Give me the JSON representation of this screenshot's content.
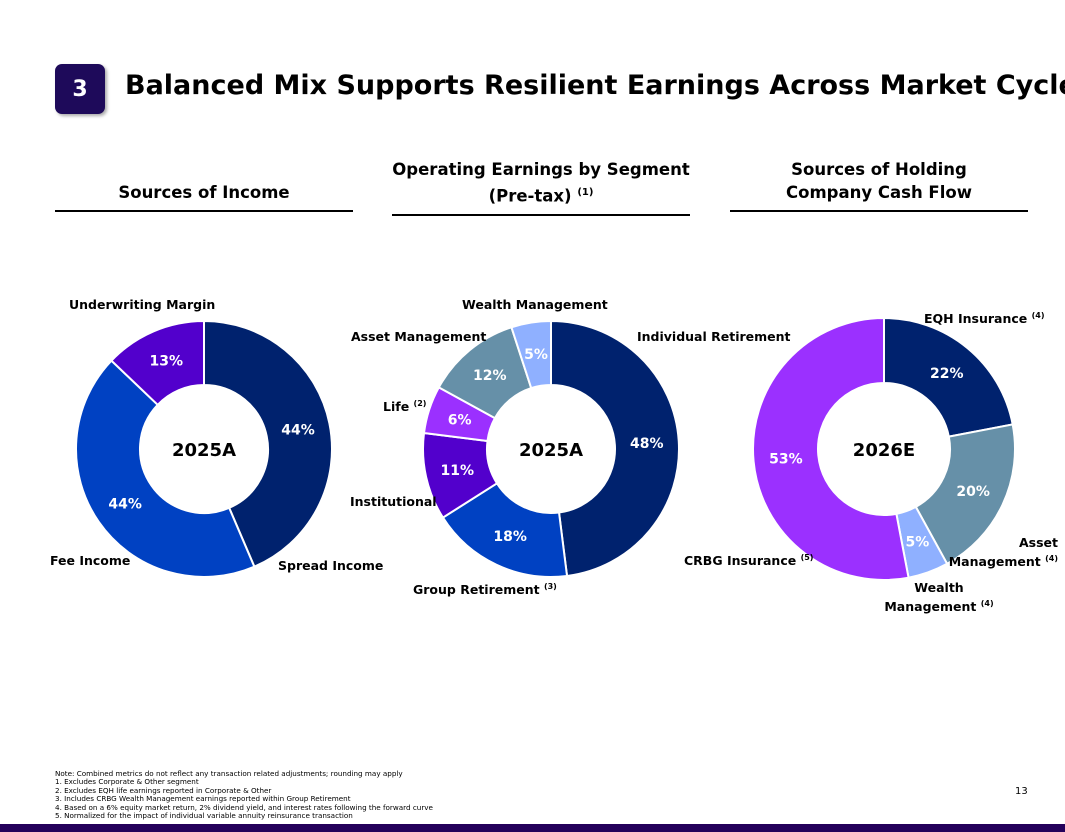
{
  "header": {
    "number": "3",
    "title": "Balanced Mix Supports Resilient Earnings Across Market Cycles"
  },
  "sections": [
    {
      "title": "Sources of Income"
    },
    {
      "title_line1": "Operating Earnings by Segment",
      "title_line2": "(Pre-tax)",
      "note": "(1)"
    },
    {
      "title_line1": "Sources of Holding",
      "title_line2": "Company Cash Flow"
    }
  ],
  "chart_data": [
    {
      "type": "pie",
      "donut": true,
      "center_label": "2025A",
      "title": "Sources of Income",
      "slices": [
        {
          "label": "Spread Income",
          "value": 44,
          "color": "#00226e"
        },
        {
          "label": "Fee Income",
          "value": 44,
          "color": "#0041c2"
        },
        {
          "label": "Underwriting Margin",
          "value": 13,
          "color": "#5200cc"
        }
      ]
    },
    {
      "type": "pie",
      "donut": true,
      "center_label": "2025A",
      "title": "Operating Earnings by Segment (Pre-tax)",
      "slices": [
        {
          "label": "Individual Retirement",
          "value": 48,
          "color": "#00226e"
        },
        {
          "label": "Group Retirement",
          "note": "(3)",
          "value": 18,
          "color": "#0041c2"
        },
        {
          "label": "Institutional",
          "value": 11,
          "color": "#5200cc"
        },
        {
          "label": "Life",
          "note": "(2)",
          "value": 6,
          "color": "#9b30ff"
        },
        {
          "label": "Asset Management",
          "value": 12,
          "color": "#6690a8"
        },
        {
          "label": "Wealth Management",
          "value": 5,
          "color": "#8fb0ff"
        }
      ]
    },
    {
      "type": "pie",
      "donut": true,
      "center_label": "2026E",
      "title": "Sources of Holding Company Cash Flow",
      "slices": [
        {
          "label": "EQH Insurance",
          "note": "(4)",
          "value": 22,
          "color": "#00226e"
        },
        {
          "label": "Asset Management",
          "note": "(4)",
          "value": 20,
          "color": "#6690a8"
        },
        {
          "label": "Wealth Management",
          "note": "(4)",
          "value": 5,
          "color": "#8fb0ff"
        },
        {
          "label": "CRBG Insurance",
          "note": "(5)",
          "value": 53,
          "color": "#9b30ff"
        }
      ]
    }
  ],
  "footnotes": [
    "Note: Combined metrics do not reflect any transaction related adjustments; rounding may apply",
    "1.   Excludes Corporate & Other segment",
    "2.   Excludes EQH life earnings reported in Corporate & Other",
    "3.   Includes CRBG Wealth Management earnings reported within Group Retirement",
    "4.   Based on a 6% equity market return, 2% dividend yield, and interest rates following the forward curve",
    "5.   Normalized for the impact of individual variable annuity reinsurance transaction"
  ],
  "page_number": "13"
}
